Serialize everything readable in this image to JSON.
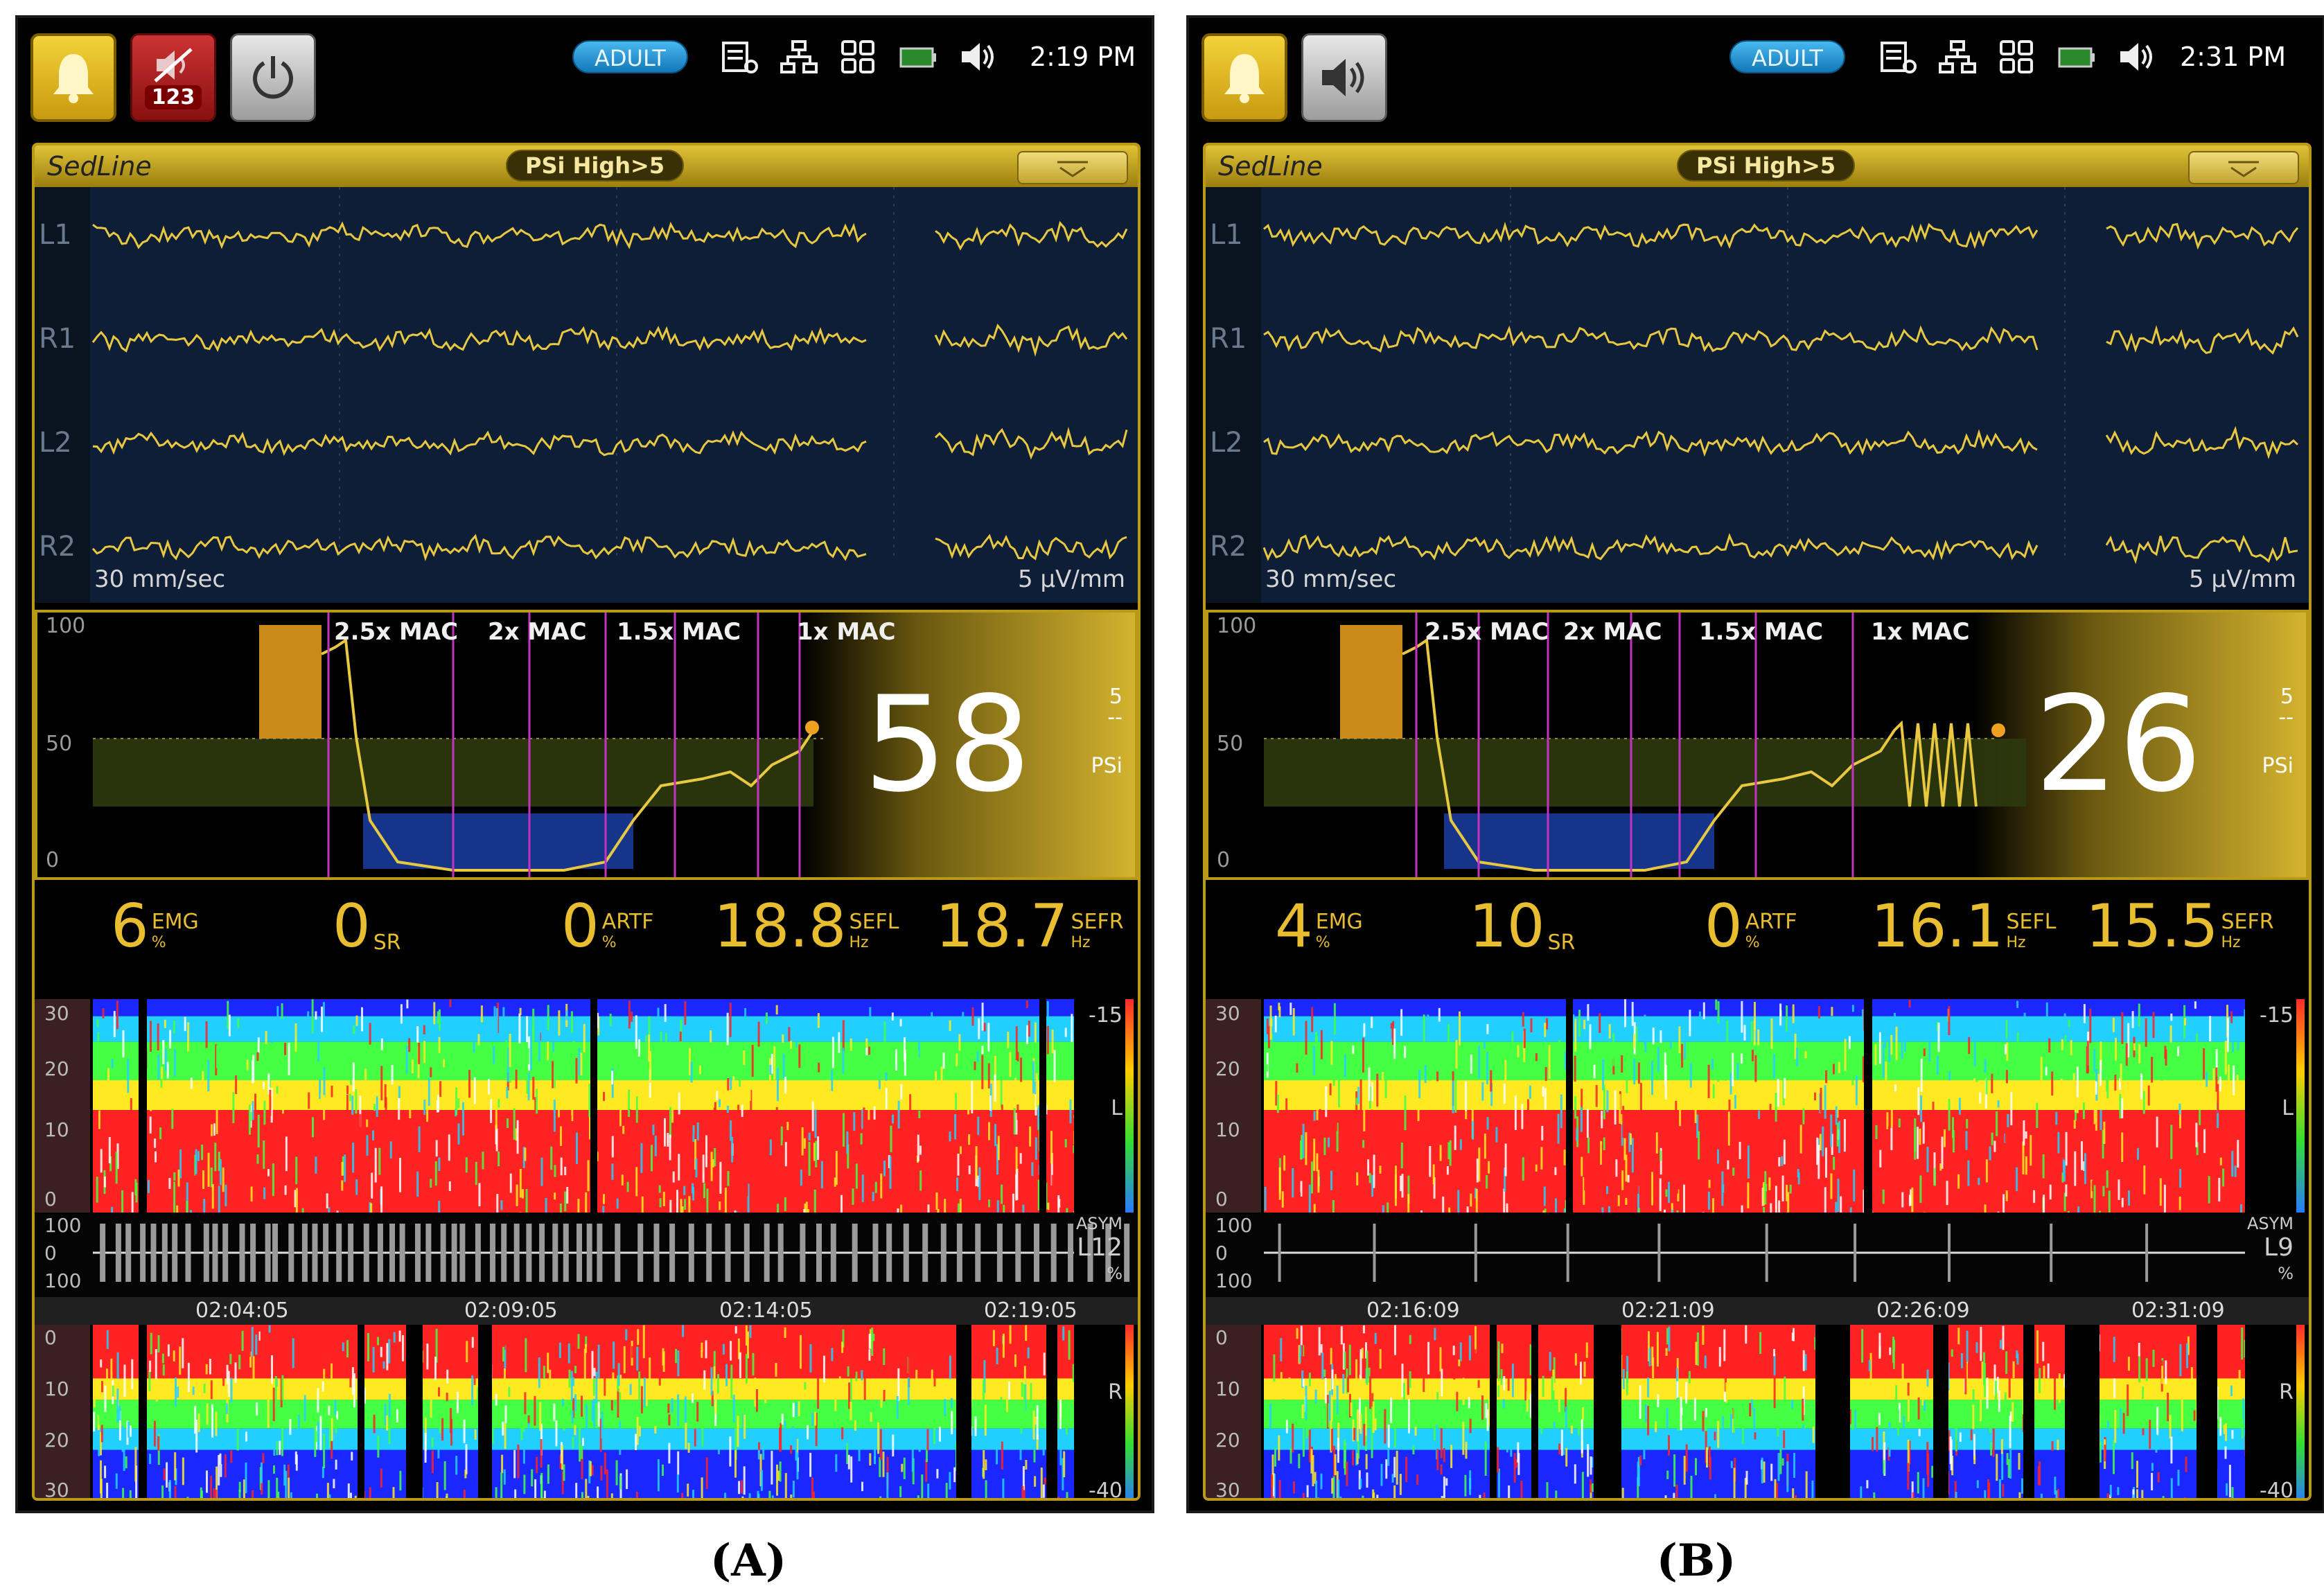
{
  "monitors": [
    {
      "id": "a",
      "caption": "(A)",
      "mute_count": "123",
      "mode": "ADULT",
      "time": "2:19 PM",
      "brand": "SedLine",
      "alarm": "PSi High>5",
      "eeg_channels": [
        "L1",
        "R1",
        "L2",
        "R2"
      ],
      "eeg_speed": "30 mm/sec",
      "eeg_scale": "5 μV/mm",
      "trend_axis": [
        "100",
        "50",
        "0"
      ],
      "mac_labels": [
        "2.5x MAC",
        "2x MAC",
        "1.5x MAC",
        "1x MAC"
      ],
      "psi_value": "58",
      "psi_limit": "5",
      "psi_dash": "--",
      "psi_label": "PSi",
      "params": [
        {
          "value": "6",
          "label": "EMG",
          "unit": "%"
        },
        {
          "value": "0",
          "label": "SR",
          "unit": ""
        },
        {
          "value": "0",
          "label": "ARTF",
          "unit": "%"
        },
        {
          "value": "18.8",
          "label": "SEFL",
          "unit": "Hz"
        },
        {
          "value": "18.7",
          "label": "SEFR",
          "unit": "Hz"
        }
      ],
      "dsa_left_axis": [
        "30",
        "20",
        "10",
        "0"
      ],
      "dsa_right_axis": [
        "0",
        "10",
        "20",
        "30"
      ],
      "dsa_scale_top": "-15",
      "dsa_scale_bottom": "-40",
      "dsa_left_label": "L",
      "dsa_right_label": "R",
      "asym_axis": [
        "100",
        "0",
        "100"
      ],
      "asym_label": "ASYM",
      "asym_value": "L12",
      "asym_unit": "%",
      "timestamps": [
        "02:04:05",
        "02:09:05",
        "02:14:05",
        "02:19:05"
      ]
    },
    {
      "id": "b",
      "caption": "(B)",
      "mute_count": "",
      "mode": "ADULT",
      "time": "2:31 PM",
      "brand": "SedLine",
      "alarm": "PSi High>5",
      "eeg_channels": [
        "L1",
        "R1",
        "L2",
        "R2"
      ],
      "eeg_speed": "30 mm/sec",
      "eeg_scale": "5 μV/mm",
      "trend_axis": [
        "100",
        "50",
        "0"
      ],
      "mac_labels": [
        "2.5x MAC",
        "2x MAC",
        "1.5x MAC",
        "1x MAC"
      ],
      "psi_value": "26",
      "psi_limit": "5",
      "psi_dash": "--",
      "psi_label": "PSi",
      "params": [
        {
          "value": "4",
          "label": "EMG",
          "unit": "%"
        },
        {
          "value": "10",
          "label": "SR",
          "unit": ""
        },
        {
          "value": "0",
          "label": "ARTF",
          "unit": "%"
        },
        {
          "value": "16.1",
          "label": "SEFL",
          "unit": "Hz"
        },
        {
          "value": "15.5",
          "label": "SEFR",
          "unit": "Hz"
        }
      ],
      "dsa_left_axis": [
        "30",
        "20",
        "10",
        "0"
      ],
      "dsa_right_axis": [
        "0",
        "10",
        "20",
        "30"
      ],
      "dsa_scale_top": "-15",
      "dsa_scale_bottom": "-40",
      "dsa_left_label": "L",
      "dsa_right_label": "R",
      "asym_axis": [
        "100",
        "0",
        "100"
      ],
      "asym_label": "ASYM",
      "asym_value": "L9",
      "asym_unit": "%",
      "timestamps": [
        "02:16:09",
        "02:21:09",
        "02:26:09",
        "02:31:09"
      ]
    }
  ],
  "colors": {
    "gold": "#d4b32f",
    "trace": "#e8c840",
    "param": "#e8bd30",
    "mac_line": "#c233c2",
    "dsa_hot": "#ff1a1a",
    "dsa_cold": "#1a3aff"
  },
  "icons": [
    "bell-icon",
    "mute-icon",
    "speaker-icon",
    "power-icon",
    "menu-icon",
    "network-icon",
    "grid-icon",
    "battery-icon",
    "volume-icon",
    "chevron-down-icon"
  ]
}
